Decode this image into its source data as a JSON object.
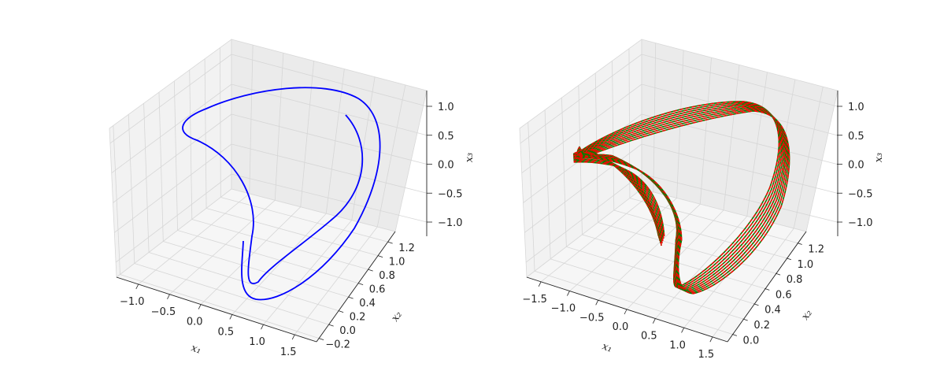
{
  "chart_data": [
    {
      "type": "line3d",
      "title": "",
      "xlabel": "x₁",
      "ylabel": "x₂",
      "zlabel": "x₃",
      "xlim": [
        -1.35,
        1.85
      ],
      "ylim": [
        -0.25,
        1.35
      ],
      "zlim": [
        -1.25,
        1.25
      ],
      "xticks": [
        "−1.0",
        "−0.5",
        "0.0",
        "0.5",
        "1.0",
        "1.5"
      ],
      "xtick_values": [
        -1.0,
        -0.5,
        0.0,
        0.5,
        1.0,
        1.5
      ],
      "yticks": [
        "−0.2",
        "0.0",
        "0.2",
        "0.4",
        "0.6",
        "0.8",
        "1.0",
        "1.2"
      ],
      "ytick_values": [
        -0.2,
        0.0,
        0.2,
        0.4,
        0.6,
        0.8,
        1.0,
        1.2
      ],
      "zticks": [
        "−1.0",
        "−0.5",
        "0.0",
        "0.5",
        "1.0"
      ],
      "ztick_values": [
        -1.0,
        -0.5,
        0.0,
        0.5,
        1.0
      ],
      "grid": true,
      "series": [
        {
          "color": "#0000ff",
          "style": "solid",
          "t_range": [
            0.15,
            1.12
          ]
        }
      ]
    },
    {
      "type": "line3d",
      "title": "",
      "xlabel": "x₁",
      "ylabel": "x₂",
      "zlabel": "x₃",
      "xlim": [
        -1.75,
        1.75
      ],
      "ylim": [
        -0.1,
        1.35
      ],
      "zlim": [
        -1.25,
        1.25
      ],
      "xticks": [
        "−1.5",
        "−1.0",
        "−0.5",
        "0.0",
        "0.5",
        "1.0",
        "1.5"
      ],
      "xtick_values": [
        -1.5,
        -1.0,
        -0.5,
        0.0,
        0.5,
        1.0,
        1.5
      ],
      "yticks": [
        "0.0",
        "0.2",
        "0.4",
        "0.6",
        "0.8",
        "1.0",
        "1.2"
      ],
      "ytick_values": [
        0.0,
        0.2,
        0.4,
        0.6,
        0.8,
        1.0,
        1.2
      ],
      "zticks": [
        "−1.0",
        "−0.5",
        "0.0",
        "0.5",
        "1.0"
      ],
      "ztick_values": [
        -1.0,
        -0.5,
        0.0,
        0.5,
        1.0
      ],
      "grid": true,
      "series": [
        {
          "color": "#008000",
          "style": "solid",
          "loops": 9
        },
        {
          "color": "#ff0000",
          "style": "dashed",
          "loops": 9
        }
      ]
    }
  ]
}
